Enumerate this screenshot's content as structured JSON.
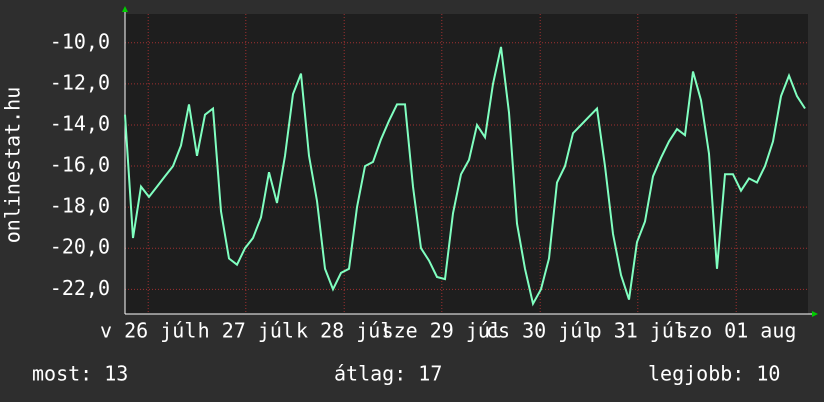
{
  "chart_data": {
    "type": "line",
    "y_label": "onlinestat.hu",
    "series": [
      {
        "name": "onlinestat.hu",
        "color": "#80ffc0",
        "values": [
          -13.5,
          -19.5,
          -17,
          -17.5,
          -17,
          -16.5,
          -16,
          -15,
          -13,
          -15.5,
          -13.5,
          -13.2,
          -18.2,
          -20.5,
          -20.8,
          -20,
          -19.5,
          -18.5,
          -16.3,
          -17.8,
          -15.5,
          -12.5,
          -11.5,
          -15.5,
          -17.7,
          -21,
          -22,
          -21.2,
          -21,
          -18,
          -16,
          -15.8,
          -14.7,
          -13.8,
          -13,
          -13,
          -17,
          -20,
          -20.6,
          -21.4,
          -21.5,
          -18.3,
          -16.4,
          -15.7,
          -14,
          -14.6,
          -12,
          -10.2,
          -13.4,
          -18.8,
          -21,
          -22.7,
          -22,
          -20.5,
          -16.8,
          -16,
          -14.4,
          -14,
          -13.6,
          -13.2,
          -16,
          -19.3,
          -21.3,
          -22.5,
          -19.7,
          -18.7,
          -16.5,
          -15.6,
          -14.8,
          -14.2,
          -14.5,
          -11.4,
          -12.8,
          -15.4,
          -21,
          -16.4,
          -16.4,
          -17.2,
          -16.6,
          -16.8,
          -16,
          -14.8,
          -12.6,
          -11.6,
          -12.6,
          -13.2
        ]
      }
    ],
    "xlim": [
      0,
      85
    ],
    "xticks": [
      {
        "value": 2.9,
        "label": "v 26 júl"
      },
      {
        "value": 15.1,
        "label": "h 27 júl"
      },
      {
        "value": 27.4,
        "label": "k 28 júl"
      },
      {
        "value": 39.6,
        "label": "sze 29 júl"
      },
      {
        "value": 51.9,
        "label": "cs 30 júl"
      },
      {
        "value": 64.1,
        "label": "p 31 júl"
      },
      {
        "value": 76.4,
        "label": "szo 01 aug"
      }
    ],
    "ylim": [
      -23.2,
      -8.6
    ],
    "yticks": [
      {
        "value": -22,
        "label": "-22,0"
      },
      {
        "value": -20,
        "label": "-20,0"
      },
      {
        "value": -18,
        "label": "-18,0"
      },
      {
        "value": -16,
        "label": "-16,0"
      },
      {
        "value": -14,
        "label": "-14,0"
      },
      {
        "value": -12,
        "label": "-12,0"
      },
      {
        "value": -10,
        "label": "-10,0"
      }
    ],
    "grid": true,
    "footer": {
      "current": "most: 13",
      "average": "átlag: 17",
      "best": "legjobb: 10"
    }
  }
}
